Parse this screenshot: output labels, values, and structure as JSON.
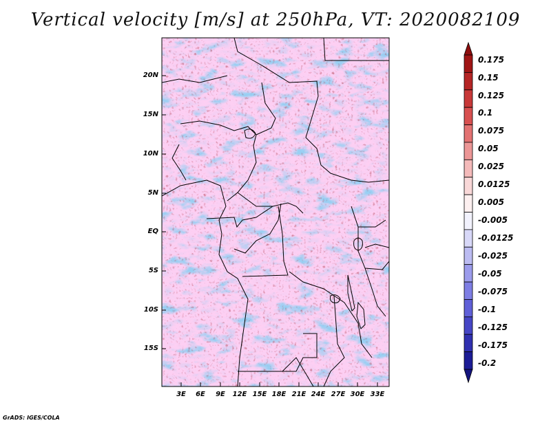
{
  "title": "Vertical velocity [m/s] at 250hPa, VT: 2020082109",
  "credit": "GrADS: IGES/COLA",
  "map": {
    "lat_labels": [
      "20N",
      "15N",
      "10N",
      "5N",
      "EQ",
      "5S",
      "10S",
      "15S"
    ],
    "lon_labels": [
      "3E",
      "6E",
      "9E",
      "12E",
      "15E",
      "18E",
      "21E",
      "24E",
      "27E",
      "30E",
      "33E"
    ]
  },
  "colorbar": {
    "labels": [
      "0.175",
      "0.15",
      "0.125",
      "0.1",
      "0.075",
      "0.05",
      "0.025",
      "0.0125",
      "0.005",
      "-0.005",
      "-0.0125",
      "-0.025",
      "-0.05",
      "-0.075",
      "-0.1",
      "-0.125",
      "-0.175",
      "-0.2"
    ],
    "colors": [
      "#a01515",
      "#b52525",
      "#c83838",
      "#d85050",
      "#e37272",
      "#ec9696",
      "#f4baba",
      "#f9d8d8",
      "#fdf0f0",
      "#f2f2fd",
      "#d8d8f8",
      "#bcbcf2",
      "#9c9cec",
      "#7e7ee4",
      "#6060d8",
      "#4646c6",
      "#3030b0",
      "#1c1c96"
    ]
  }
}
